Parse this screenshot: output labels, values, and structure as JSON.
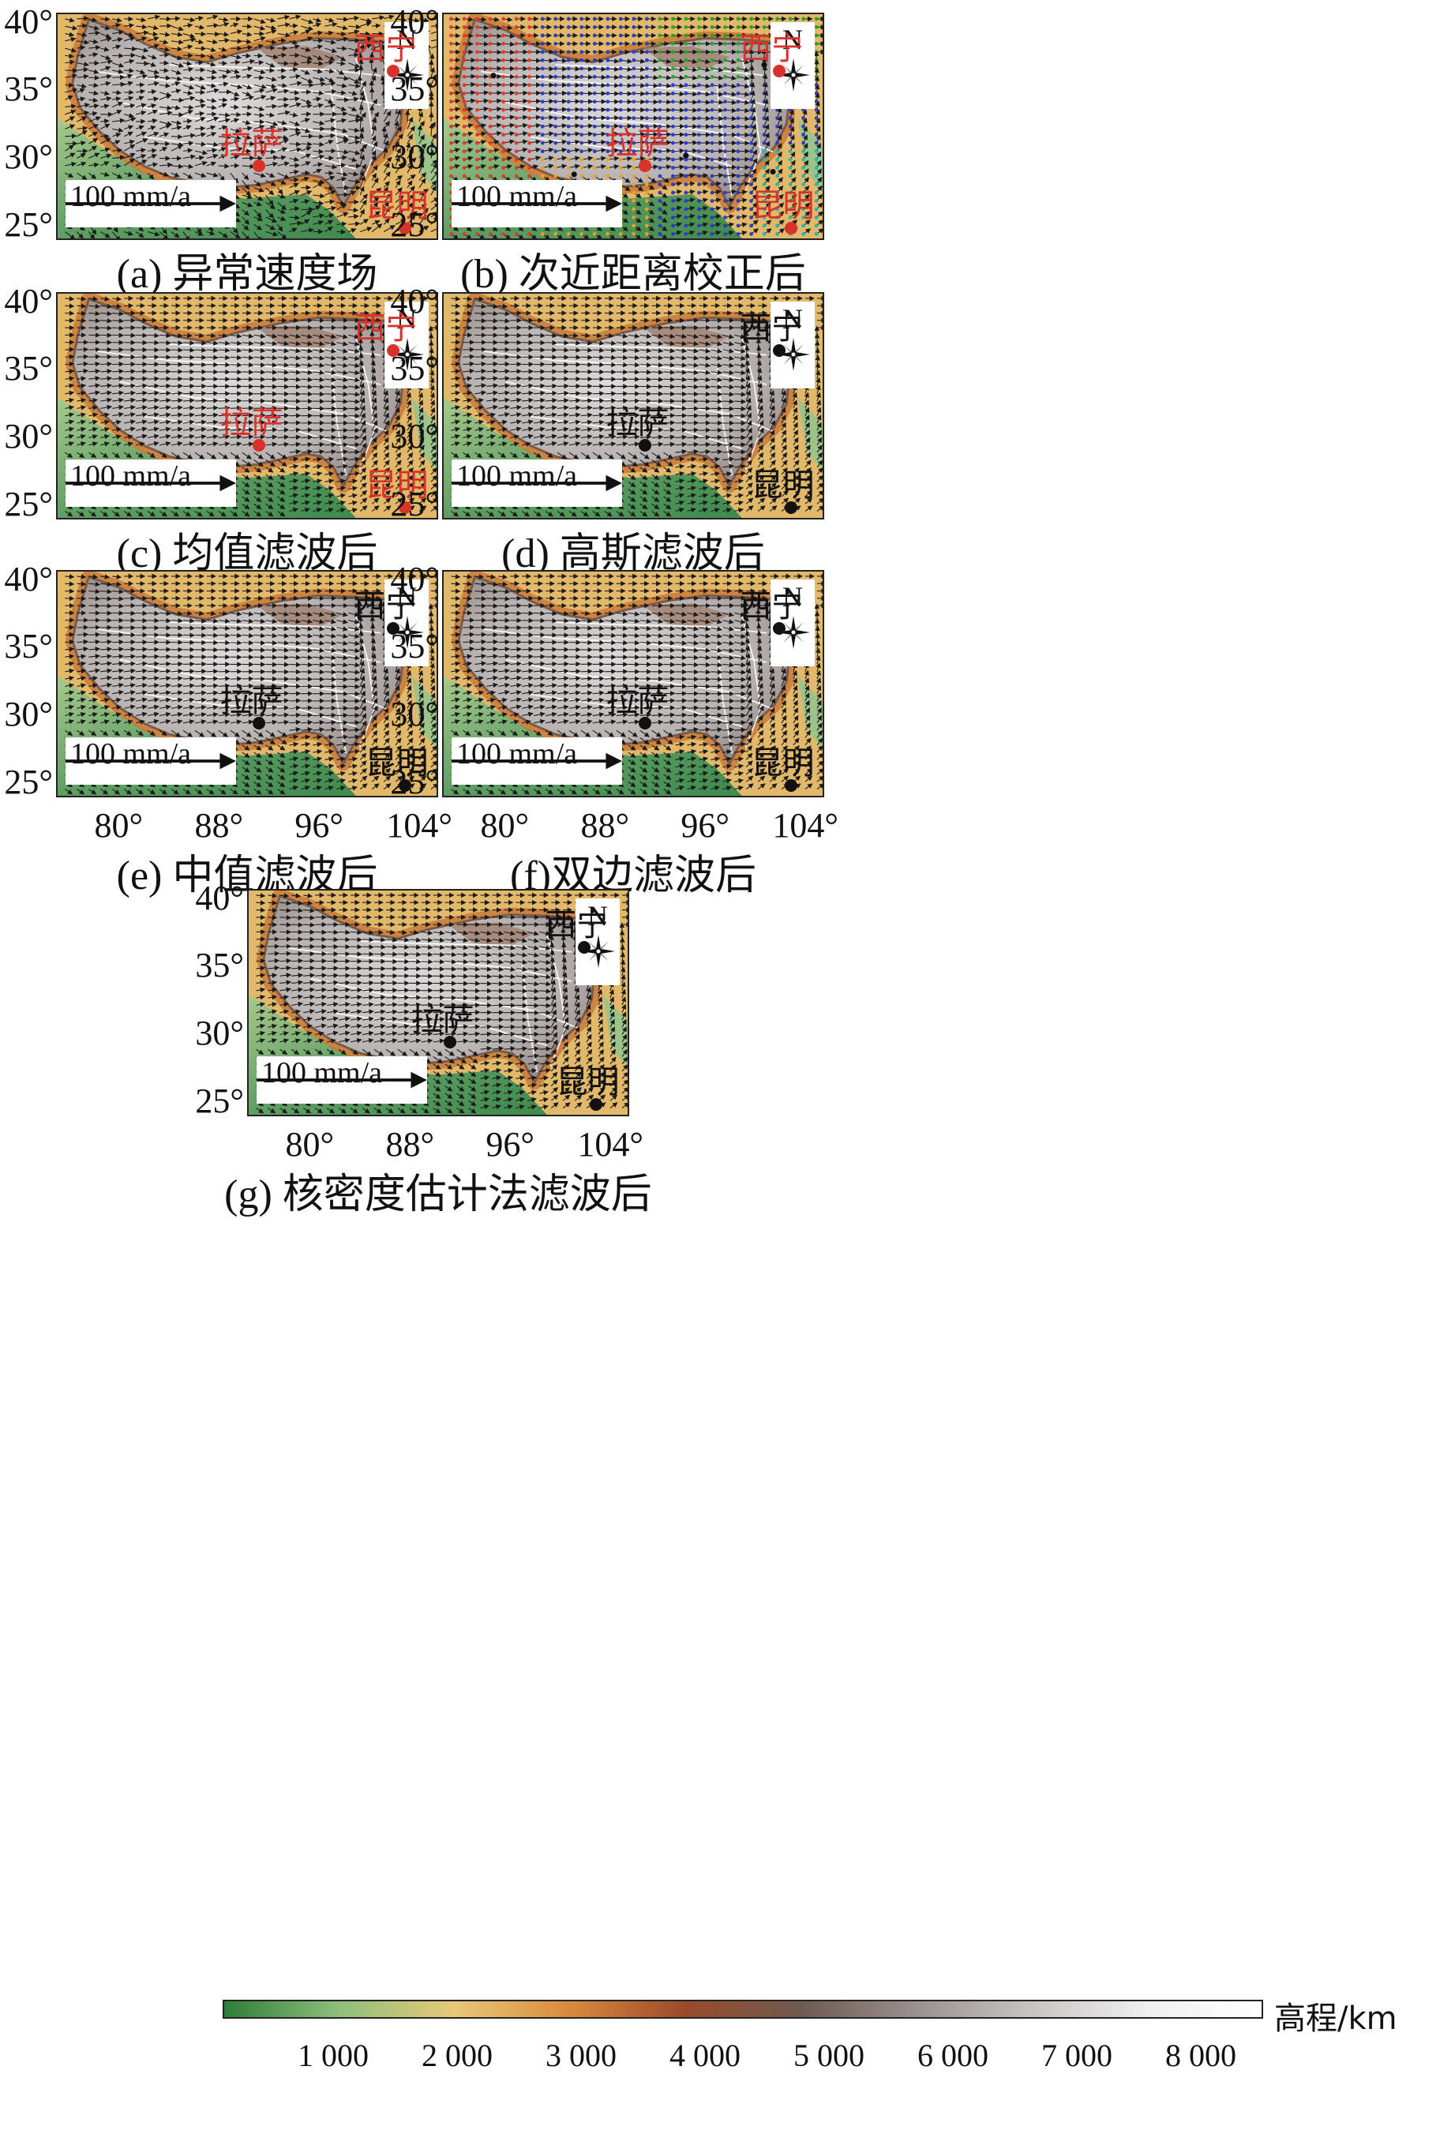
{
  "lat_ticks": [
    "40°",
    "35°",
    "30°",
    "25°"
  ],
  "lon_ticks": [
    "80°",
    "88°",
    "96°",
    "104°"
  ],
  "scale_label": "100 mm/a",
  "compass_label": "N",
  "panels": [
    {
      "id": "a",
      "caption": "(a) 异常速度场",
      "city_color": "red",
      "show_lon": false,
      "pattern": "chaotic",
      "colored_dots": false
    },
    {
      "id": "b",
      "caption": "(b) 次近距离校正后",
      "city_color": "red",
      "show_lon": false,
      "pattern": "grid",
      "colored_dots": true
    },
    {
      "id": "c",
      "caption": "(c) 均值滤波后",
      "city_color": "red",
      "show_lon": false,
      "pattern": "smooth",
      "colored_dots": false
    },
    {
      "id": "d",
      "caption": "(d) 高斯滤波后",
      "city_color": "black",
      "show_lon": false,
      "pattern": "smooth",
      "colored_dots": false
    },
    {
      "id": "e",
      "caption": "(e) 中值滤波后",
      "city_color": "black",
      "show_lon": true,
      "pattern": "smooth",
      "colored_dots": false
    },
    {
      "id": "f",
      "caption": "(f)双边滤波后",
      "city_color": "black",
      "show_lon": true,
      "pattern": "smooth",
      "colored_dots": false
    },
    {
      "id": "g",
      "caption": "(g) 核密度估计法滤波后",
      "city_color": "black",
      "show_lon": true,
      "pattern": "smooth",
      "colored_dots": false
    }
  ],
  "cities": [
    {
      "name": "西宁",
      "lon": 101.8,
      "lat": 36.6
    },
    {
      "name": "拉萨",
      "lon": 91.1,
      "lat": 29.6
    },
    {
      "name": "昆明",
      "lon": 102.7,
      "lat": 25.0
    }
  ],
  "colorbar": {
    "label": "高程/km",
    "ticks": [
      "1 000",
      "2 000",
      "3 000",
      "4 000",
      "5 000",
      "6 000",
      "7 000",
      "8 000"
    ],
    "colors": [
      "#2f7d3a",
      "#8fbf7a",
      "#e8c878",
      "#d98a3c",
      "#9a4a2a",
      "#6e5a50",
      "#9a9090",
      "#c8c4c4",
      "#efefef",
      "#ffffff"
    ]
  }
}
